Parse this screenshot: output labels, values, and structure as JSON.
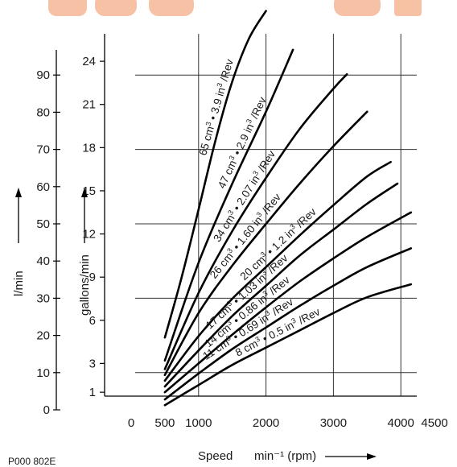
{
  "colors": {
    "watermark": "#f5b795",
    "ink": "#111111"
  },
  "chart_data": {
    "type": "line",
    "x": {
      "label": "Speed",
      "unit_label": "min⁻¹ (rpm)",
      "ticks": [
        0,
        500,
        1000,
        2000,
        3000,
        4000,
        4500
      ],
      "range": [
        0,
        4500
      ]
    },
    "y_gallons": {
      "label": "gallons/min",
      "ticks": [
        1,
        3,
        6,
        9,
        12,
        15,
        18,
        21,
        24
      ]
    },
    "y_lmin": {
      "label": "l/min",
      "ticks": [
        0,
        10,
        20,
        30,
        40,
        50,
        60,
        70,
        80,
        90
      ]
    },
    "figure_code": "P000 802E",
    "series": [
      {
        "name": "65 cm³ • 3.9 in³/Rev",
        "parts": [
          "65 cm",
          "3",
          " • 3.9 in",
          "3",
          " /Rev"
        ],
        "x": [
          500,
          750,
          1000,
          1250,
          1500,
          1750,
          2000
        ],
        "y": [
          4.8,
          9,
          13.7,
          18.5,
          22.6,
          25.6,
          27.5
        ]
      },
      {
        "name": "47 cm³ • 2.9 in³/Rev",
        "parts": [
          "47 cm",
          "3",
          " • 2.9 in",
          "3",
          " /Rev"
        ],
        "x": [
          500,
          1000,
          1500,
          2000,
          2400
        ],
        "y": [
          3.2,
          10,
          15.5,
          20.5,
          24.8
        ]
      },
      {
        "name": "34 cm³ • 2.07 in³/Rev",
        "parts": [
          "34 cm",
          "3",
          " • 2.07 in",
          "3",
          " /Rev"
        ],
        "x": [
          500,
          1000,
          1500,
          2000,
          2500,
          3000,
          3200
        ],
        "y": [
          2.6,
          7.9,
          12.2,
          15.9,
          19.3,
          22.1,
          23.1
        ]
      },
      {
        "name": "26 cm³ • 1.60 in³/Rev",
        "parts": [
          "26 cm",
          "3",
          " • 1.60 in",
          "3",
          " /Rev"
        ],
        "x": [
          500,
          1000,
          1500,
          2000,
          2500,
          3000,
          3500
        ],
        "y": [
          2.2,
          6.5,
          9.8,
          12.7,
          15.5,
          18.1,
          20.5
        ]
      },
      {
        "name": "20 cm³ • 1.2 in³/Rev",
        "parts": [
          "20 cm",
          "3",
          " • 1.2 in",
          "3",
          " /Rev"
        ],
        "x": [
          500,
          1000,
          1500,
          2000,
          2500,
          3000,
          3500,
          3850
        ],
        "y": [
          1.8,
          4.9,
          7.5,
          9.7,
          11.9,
          14.0,
          16.0,
          17.0
        ]
      },
      {
        "name": "17 cm³ • 1.03 in³/Rev",
        "parts": [
          "17 cm",
          "3",
          " • 1.03 in",
          "3",
          " /Rev"
        ],
        "x": [
          500,
          1000,
          1500,
          2000,
          2500,
          3000,
          3500,
          3950
        ],
        "y": [
          1.4,
          3.9,
          6.3,
          8.4,
          10.5,
          12.3,
          14.1,
          15.5
        ]
      },
      {
        "name": "14 cm³ • 0.86 in³/Rev",
        "parts": [
          "14 cm",
          "3",
          " • 0.86 in",
          "3",
          " /Rev"
        ],
        "x": [
          500,
          1000,
          1500,
          2000,
          2500,
          3000,
          3500,
          4150
        ],
        "y": [
          1.0,
          3.0,
          5.0,
          6.9,
          8.7,
          10.3,
          11.8,
          13.5
        ]
      },
      {
        "name": "11 cm³ • 0.69 in³/Rev",
        "parts": [
          "11 cm",
          "3",
          " • 0.69 in",
          "3",
          " /Rev"
        ],
        "x": [
          500,
          1000,
          1500,
          2000,
          2500,
          3000,
          3500,
          4150
        ],
        "y": [
          0.5,
          2.3,
          4.0,
          5.5,
          7.0,
          8.4,
          9.7,
          11.0
        ]
      },
      {
        "name": "8 cm³ • 0.5 in³/Rev",
        "parts": [
          "8 cm",
          "3",
          " • 0.5 in",
          "3",
          " /Rev"
        ],
        "x": [
          500,
          1000,
          1500,
          2000,
          2500,
          3000,
          3500,
          4150
        ],
        "y": [
          0.1,
          1.5,
          2.9,
          4.1,
          5.3,
          6.5,
          7.6,
          8.5
        ]
      }
    ]
  }
}
